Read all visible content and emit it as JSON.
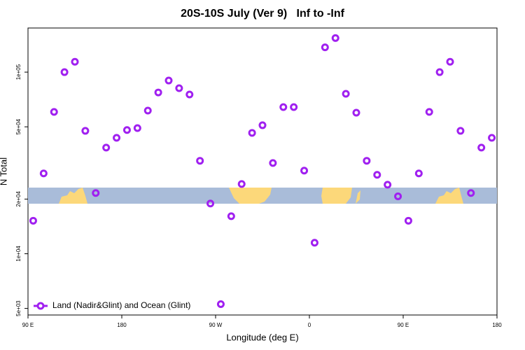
{
  "chart_data": {
    "type": "scatter",
    "title": "20S-10S July (Ver 9)   Inf to -Inf",
    "x_label": "Longitude (deg E)",
    "y_label": "N Total",
    "log_y": true,
    "xlim": [
      90,
      540
    ],
    "ylim": [
      4600,
      175000
    ],
    "xticks": [
      {
        "value": 90,
        "label": "90 E"
      },
      180,
      {
        "value": 270,
        "label": "90 W"
      },
      {
        "value": 360,
        "label": "0"
      },
      {
        "value": 450,
        "label": "90 E"
      },
      {
        "value": 540,
        "label": "180"
      }
    ],
    "yticks": [
      {
        "value": 5000,
        "label": "5e+03"
      },
      {
        "value": 10000,
        "label": "1e+04"
      },
      {
        "value": 20000,
        "label": "2e+04"
      },
      {
        "value": 50000,
        "label": "5e+04"
      },
      {
        "value": 100000,
        "label": "1e+05"
      }
    ],
    "legend": "bottom-left",
    "series": [
      {
        "name": "Land (Nadir&Glint) and Ocean (Glint)",
        "color": "#a020f0",
        "x": [
          95,
          105,
          115,
          125,
          135,
          145,
          155,
          165,
          175,
          185,
          195,
          205,
          215,
          225,
          235,
          245,
          255,
          265,
          275,
          285,
          295,
          305,
          315,
          325,
          335,
          345,
          355,
          365,
          375,
          385,
          395,
          405,
          415,
          425,
          435,
          445,
          455,
          465,
          475,
          485,
          495,
          505,
          515,
          525,
          535
        ],
        "values": [
          15200,
          27700,
          60400,
          100000,
          114000,
          47500,
          21600,
          38400,
          43500,
          48000,
          49200,
          61400,
          77300,
          89900,
          81600,
          75300,
          32500,
          18900,
          5280,
          16100,
          24200,
          46300,
          51000,
          31600,
          64200,
          64200,
          28700,
          11500,
          137000,
          154000,
          76000,
          59800,
          32500,
          27200,
          24000,
          20700,
          15200,
          27700,
          60400,
          100000,
          114000,
          47500,
          21600,
          38400,
          43500
        ]
      }
    ]
  }
}
